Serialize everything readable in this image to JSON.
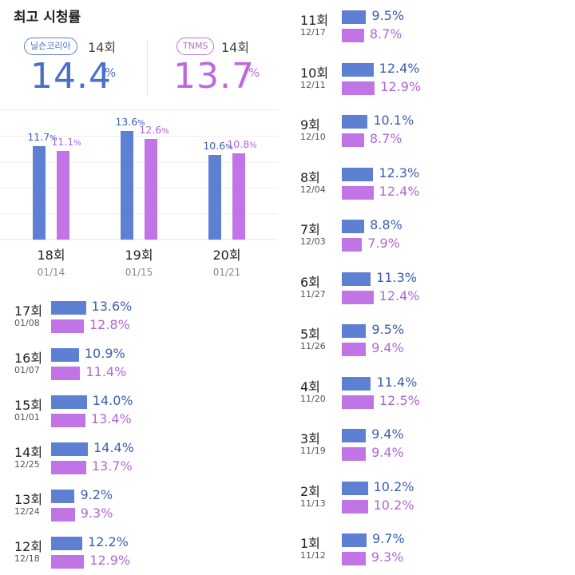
{
  "header": {
    "title": "최고 시청률",
    "sources": [
      {
        "name": "닐슨코리아",
        "episode": "14회",
        "value": "14.4",
        "unit": "%"
      },
      {
        "name": "TNMS",
        "episode": "14회",
        "value": "13.7",
        "unit": "%"
      }
    ]
  },
  "colors": {
    "nielsen": "#5e80d3",
    "tnms": "#c174e5"
  },
  "chart_data": {
    "type": "bar",
    "categories": [
      "18회",
      "19회",
      "20회"
    ],
    "dates": [
      "01/14",
      "01/15",
      "01/21"
    ],
    "series": [
      {
        "values": [
          11.7,
          13.6,
          10.6
        ],
        "labels": [
          "11.7",
          "13.6",
          "10.6"
        ]
      },
      {
        "values": [
          11.1,
          12.6,
          10.8
        ],
        "labels": [
          "11.1",
          "12.6",
          "10.8"
        ]
      }
    ],
    "unit": "%",
    "ylim": [
      0,
      16
    ],
    "grid": true
  },
  "episodes_left": [
    {
      "label": "17회",
      "date": "01/08",
      "nielsen": 13.6,
      "tnms": 12.8,
      "nielsen_text": "13.6%",
      "tnms_text": "12.8%"
    },
    {
      "label": "16회",
      "date": "01/07",
      "nielsen": 10.9,
      "tnms": 11.4,
      "nielsen_text": "10.9%",
      "tnms_text": "11.4%"
    },
    {
      "label": "15회",
      "date": "01/01",
      "nielsen": 14.0,
      "tnms": 13.4,
      "nielsen_text": "14.0%",
      "tnms_text": "13.4%"
    },
    {
      "label": "14회",
      "date": "12/25",
      "nielsen": 14.4,
      "tnms": 13.7,
      "nielsen_text": "14.4%",
      "tnms_text": "13.7%"
    },
    {
      "label": "13회",
      "date": "12/24",
      "nielsen": 9.2,
      "tnms": 9.3,
      "nielsen_text": "9.2%",
      "tnms_text": "9.3%"
    },
    {
      "label": "12회",
      "date": "12/18",
      "nielsen": 12.2,
      "tnms": 12.9,
      "nielsen_text": "12.2%",
      "tnms_text": "12.9%"
    }
  ],
  "episodes_right": [
    {
      "label": "11회",
      "date": "12/17",
      "nielsen": 9.5,
      "tnms": 8.7,
      "nielsen_text": "9.5%",
      "tnms_text": "8.7%"
    },
    {
      "label": "10회",
      "date": "12/11",
      "nielsen": 12.4,
      "tnms": 12.9,
      "nielsen_text": "12.4%",
      "tnms_text": "12.9%"
    },
    {
      "label": "9회",
      "date": "12/10",
      "nielsen": 10.1,
      "tnms": 8.7,
      "nielsen_text": "10.1%",
      "tnms_text": "8.7%"
    },
    {
      "label": "8회",
      "date": "12/04",
      "nielsen": 12.3,
      "tnms": 12.4,
      "nielsen_text": "12.3%",
      "tnms_text": "12.4%"
    },
    {
      "label": "7회",
      "date": "12/03",
      "nielsen": 8.8,
      "tnms": 7.9,
      "nielsen_text": "8.8%",
      "tnms_text": "7.9%"
    },
    {
      "label": "6회",
      "date": "11/27",
      "nielsen": 11.3,
      "tnms": 12.4,
      "nielsen_text": "11.3%",
      "tnms_text": "12.4%"
    },
    {
      "label": "5회",
      "date": "11/26",
      "nielsen": 9.5,
      "tnms": 9.4,
      "nielsen_text": "9.5%",
      "tnms_text": "9.4%"
    },
    {
      "label": "4회",
      "date": "11/20",
      "nielsen": 11.4,
      "tnms": 12.5,
      "nielsen_text": "11.4%",
      "tnms_text": "12.5%"
    },
    {
      "label": "3회",
      "date": "11/19",
      "nielsen": 9.4,
      "tnms": 9.4,
      "nielsen_text": "9.4%",
      "tnms_text": "9.4%"
    },
    {
      "label": "2회",
      "date": "11/13",
      "nielsen": 10.2,
      "tnms": 10.2,
      "nielsen_text": "10.2%",
      "tnms_text": "10.2%"
    },
    {
      "label": "1회",
      "date": "11/12",
      "nielsen": 9.7,
      "tnms": 9.3,
      "nielsen_text": "9.7%",
      "tnms_text": "9.3%"
    }
  ]
}
